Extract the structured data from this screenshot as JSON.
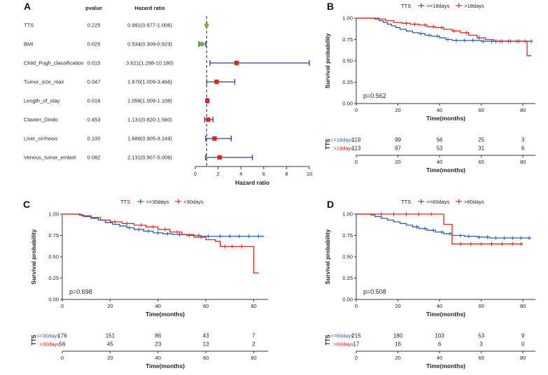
{
  "panels": [
    {
      "label": "A"
    },
    {
      "label": "B"
    },
    {
      "label": "C"
    },
    {
      "label": "D"
    }
  ],
  "colors": {
    "blue": "#2b5dab",
    "red": "#e0251c",
    "green": "#78b33e",
    "marker_red": "#d62a20",
    "bar": "#27408b",
    "axis": "#333333",
    "text": "#222222"
  },
  "chart_data": [
    {
      "id": "forest",
      "panel": "A",
      "type": "forest",
      "col_headers": {
        "pvalue": "pvalue",
        "hr": "Hazard ratio"
      },
      "xlabel": "Hazard ratio",
      "xlim": [
        0,
        10
      ],
      "xticks": [
        0,
        2,
        4,
        6,
        8,
        10
      ],
      "ref_x": 1,
      "rows": [
        {
          "label": "TTS",
          "pvalue": "0.225",
          "hr_text": "0.991(0.977-1.006)",
          "hr": 0.991,
          "lo": 0.977,
          "hi": 1.006,
          "marker": "circle",
          "color": "green"
        },
        {
          "label": "BMI",
          "pvalue": "0.025",
          "hr_text": "0.534(0.309-0.923)",
          "hr": 0.534,
          "lo": 0.309,
          "hi": 0.923,
          "marker": "square",
          "color": "green"
        },
        {
          "label": "Child_Pugh_classification",
          "pvalue": "0.015",
          "hr_text": "3.621(1.288-10.180)",
          "hr": 3.621,
          "lo": 1.288,
          "hi": 10.18,
          "marker": "square",
          "color": "marker_red"
        },
        {
          "label": "Tumor_size_max",
          "pvalue": "0.047",
          "hr_text": "1.870(1.009-3.466)",
          "hr": 1.87,
          "lo": 1.009,
          "hi": 3.466,
          "marker": "square",
          "color": "marker_red"
        },
        {
          "label": "Length_of_stay",
          "pvalue": "0.018",
          "hr_text": "1.058(1.009-1.108)",
          "hr": 1.058,
          "lo": 1.009,
          "hi": 1.108,
          "marker": "square",
          "color": "marker_red"
        },
        {
          "label": "Clavien_Dindo",
          "pvalue": "0.453",
          "hr_text": "1.131(0.820-1.560)",
          "hr": 1.131,
          "lo": 0.82,
          "hi": 1.56,
          "marker": "square",
          "color": "marker_red"
        },
        {
          "label": "Liver_cirrhosis",
          "pvalue": "0.100",
          "hr_text": "1.688(0.905-3.149)",
          "hr": 1.688,
          "lo": 0.905,
          "hi": 3.149,
          "marker": "square",
          "color": "marker_red"
        },
        {
          "label": "Venous_tumor_emboli",
          "pvalue": "0.082",
          "hr_text": "2.131(0.907-5.006)",
          "hr": 2.131,
          "lo": 0.907,
          "hi": 5.006,
          "marker": "square",
          "color": "marker_red"
        }
      ]
    },
    {
      "id": "km-b",
      "panel": "B",
      "type": "km",
      "legend_title": "TTS",
      "xlabel": "Time(months)",
      "ylabel": "Survival probability",
      "pvalue": "p=0.562",
      "xticks": [
        0,
        20,
        40,
        60,
        80
      ],
      "yticks": [
        "0.00",
        "0.25",
        "0.50",
        "0.75",
        "1.00"
      ],
      "xmax": 86,
      "series": [
        {
          "name": "<=18days",
          "color": "blue",
          "points": [
            [
              0,
              1.0
            ],
            [
              9,
              0.99
            ],
            [
              11,
              0.97
            ],
            [
              13,
              0.95
            ],
            [
              15,
              0.93
            ],
            [
              17,
              0.91
            ],
            [
              19,
              0.89
            ],
            [
              21,
              0.87
            ],
            [
              24,
              0.85
            ],
            [
              27,
              0.83
            ],
            [
              30,
              0.82
            ],
            [
              33,
              0.8
            ],
            [
              36,
              0.79
            ],
            [
              40,
              0.77
            ],
            [
              43,
              0.75
            ],
            [
              46,
              0.74
            ],
            [
              55,
              0.74
            ],
            [
              60,
              0.73
            ],
            [
              84,
              0.73
            ]
          ],
          "censors": [
            31,
            35,
            39,
            44,
            48,
            52,
            56,
            61,
            65,
            69,
            73,
            77,
            81,
            84
          ]
        },
        {
          "name": ">18days",
          "color": "red",
          "points": [
            [
              0,
              1.0
            ],
            [
              11,
              0.99
            ],
            [
              14,
              0.97
            ],
            [
              18,
              0.95
            ],
            [
              22,
              0.94
            ],
            [
              26,
              0.93
            ],
            [
              30,
              0.92
            ],
            [
              34,
              0.9
            ],
            [
              38,
              0.89
            ],
            [
              42,
              0.87
            ],
            [
              46,
              0.85
            ],
            [
              50,
              0.83
            ],
            [
              54,
              0.8
            ],
            [
              58,
              0.77
            ],
            [
              62,
              0.75
            ],
            [
              66,
              0.73
            ],
            [
              80,
              0.73
            ],
            [
              82,
              0.56
            ],
            [
              84,
              0.56
            ]
          ],
          "censors": [
            24,
            28,
            33,
            37,
            41,
            47,
            53,
            59,
            67,
            70,
            74,
            78
          ]
        }
      ],
      "risk_table": {
        "group_label": "TTS",
        "axis_label": "Time(months)",
        "rows": [
          {
            "name": "<=18days",
            "color": "blue",
            "counts": [
              119,
              99,
              56,
              25,
              3
            ]
          },
          {
            "name": ">18days",
            "color": "red",
            "counts": [
              113,
              97,
              53,
              31,
              6
            ]
          }
        ]
      }
    },
    {
      "id": "km-c",
      "panel": "C",
      "type": "km",
      "legend_title": "TTS",
      "xlabel": "Time(months)",
      "ylabel": "Survival probability",
      "pvalue": "p=0.698",
      "xticks": [
        0,
        20,
        40,
        60,
        80
      ],
      "yticks": [
        "0.00",
        "0.25",
        "0.50",
        "0.75",
        "1.00"
      ],
      "xmax": 86,
      "series": [
        {
          "name": "<=30days",
          "color": "blue",
          "points": [
            [
              0,
              1.0
            ],
            [
              7,
              0.99
            ],
            [
              9,
              0.97
            ],
            [
              12,
              0.95
            ],
            [
              15,
              0.93
            ],
            [
              18,
              0.9
            ],
            [
              21,
              0.88
            ],
            [
              24,
              0.86
            ],
            [
              27,
              0.84
            ],
            [
              30,
              0.82
            ],
            [
              34,
              0.8
            ],
            [
              38,
              0.78
            ],
            [
              42,
              0.77
            ],
            [
              46,
              0.76
            ],
            [
              52,
              0.75
            ],
            [
              58,
              0.74
            ],
            [
              64,
              0.74
            ],
            [
              84,
              0.73
            ]
          ],
          "censors": [
            28,
            32,
            36,
            40,
            44,
            49,
            53,
            57,
            61,
            66,
            70,
            74,
            78,
            82
          ]
        },
        {
          "name": ">30days",
          "color": "red",
          "points": [
            [
              0,
              1.0
            ],
            [
              8,
              0.98
            ],
            [
              12,
              0.96
            ],
            [
              16,
              0.93
            ],
            [
              20,
              0.91
            ],
            [
              25,
              0.89
            ],
            [
              30,
              0.87
            ],
            [
              35,
              0.85
            ],
            [
              40,
              0.82
            ],
            [
              45,
              0.79
            ],
            [
              50,
              0.76
            ],
            [
              55,
              0.73
            ],
            [
              60,
              0.7
            ],
            [
              64,
              0.68
            ],
            [
              66,
              0.62
            ],
            [
              79,
              0.62
            ],
            [
              80,
              0.31
            ],
            [
              82,
              0.31
            ]
          ],
          "censors": [
            22,
            27,
            33,
            38,
            43,
            48,
            58,
            68,
            71,
            75
          ]
        }
      ],
      "risk_table": {
        "group_label": "TTS",
        "axis_label": "Time(months)",
        "rows": [
          {
            "name": "<=30days",
            "color": "blue",
            "counts": [
              176,
              151,
              86,
              43,
              7
            ]
          },
          {
            "name": ">30days",
            "color": "red",
            "counts": [
              56,
              45,
              23,
              13,
              2
            ]
          }
        ]
      }
    },
    {
      "id": "km-d",
      "panel": "D",
      "type": "km",
      "legend_title": "TTS",
      "xlabel": "Time(months)",
      "ylabel": "Survival probability",
      "pvalue": "p=0.508",
      "xticks": [
        0,
        20,
        40,
        60,
        80
      ],
      "yticks": [
        "0.00",
        "0.25",
        "0.50",
        "0.75",
        "1.00"
      ],
      "xmax": 86,
      "series": [
        {
          "name": "<=60days",
          "color": "blue",
          "points": [
            [
              0,
              1.0
            ],
            [
              7,
              0.99
            ],
            [
              9,
              0.97
            ],
            [
              12,
              0.95
            ],
            [
              15,
              0.93
            ],
            [
              18,
              0.91
            ],
            [
              21,
              0.89
            ],
            [
              24,
              0.87
            ],
            [
              27,
              0.85
            ],
            [
              30,
              0.83
            ],
            [
              34,
              0.81
            ],
            [
              38,
              0.79
            ],
            [
              42,
              0.77
            ],
            [
              46,
              0.75
            ],
            [
              52,
              0.74
            ],
            [
              58,
              0.73
            ],
            [
              64,
              0.72
            ],
            [
              84,
              0.72
            ]
          ],
          "censors": [
            29,
            33,
            37,
            41,
            45,
            50,
            54,
            59,
            63,
            67,
            71,
            75,
            79,
            83
          ]
        },
        {
          "name": ">60days",
          "color": "red",
          "points": [
            [
              0,
              1.0
            ],
            [
              42,
              0.88
            ],
            [
              46,
              0.65
            ],
            [
              80,
              0.65
            ]
          ],
          "censors": [
            12,
            18,
            24,
            30,
            36,
            50,
            55,
            60,
            65,
            70,
            75,
            79
          ]
        }
      ],
      "risk_table": {
        "group_label": "TTS",
        "axis_label": "Time(months)",
        "rows": [
          {
            "name": "<=60days",
            "color": "blue",
            "counts": [
              215,
              180,
              103,
              53,
              9
            ]
          },
          {
            "name": ">60days",
            "color": "red",
            "counts": [
              17,
              16,
              6,
              3,
              0
            ]
          }
        ]
      }
    }
  ]
}
